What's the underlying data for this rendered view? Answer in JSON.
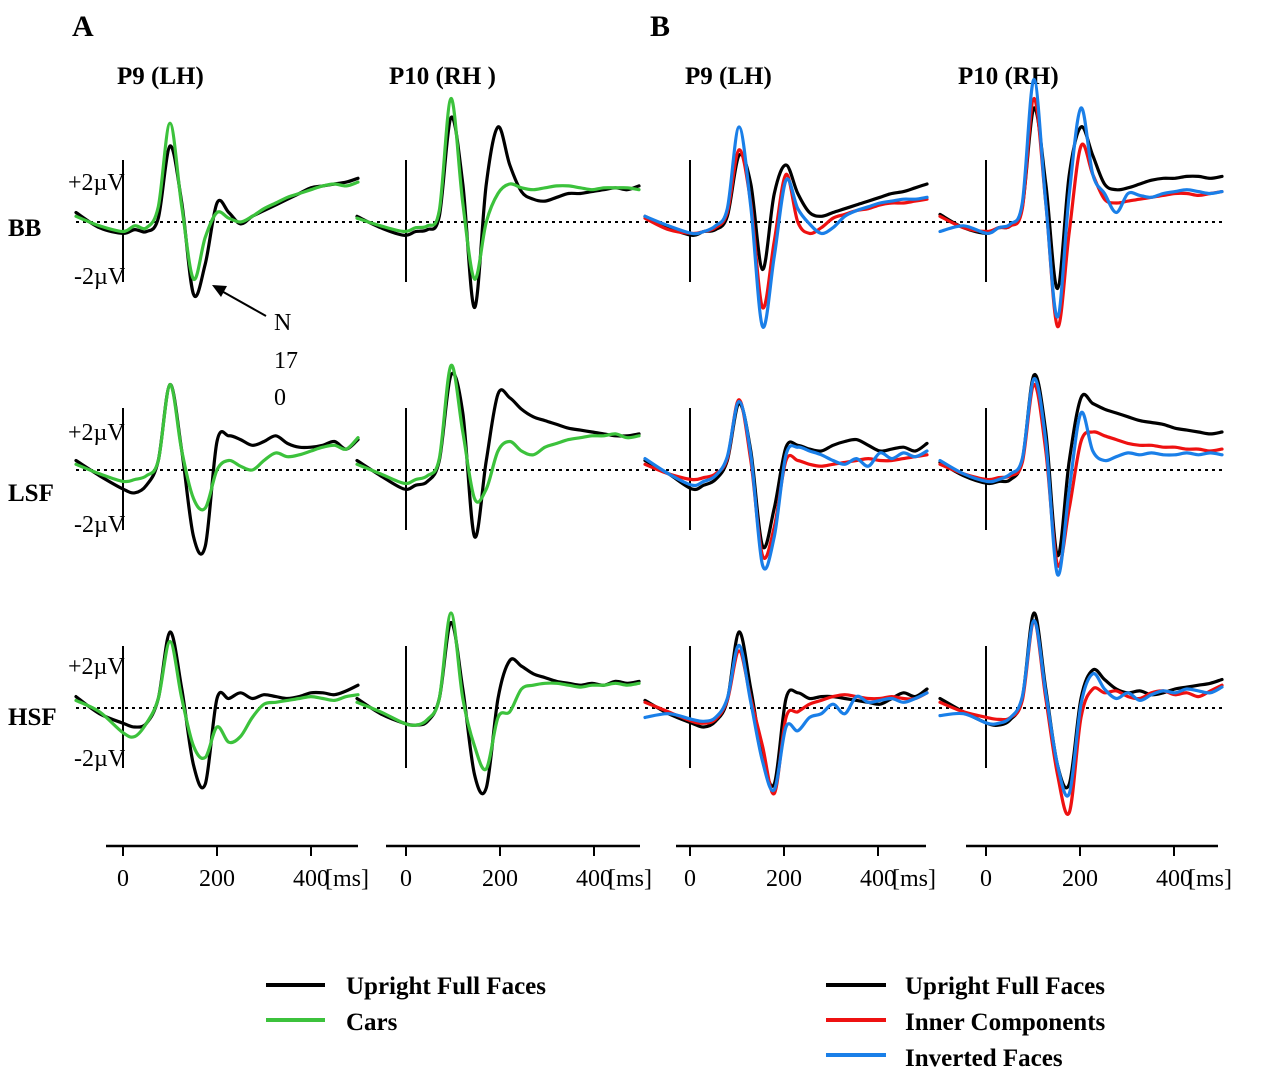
{
  "panels": {
    "A": {
      "label": "A",
      "titles": [
        "P9 (LH)",
        "P10 (RH )"
      ]
    },
    "B": {
      "label": "B",
      "titles": [
        "P9 (LH)",
        "P10 (RH)"
      ]
    }
  },
  "rows": [
    "BB",
    "LSF",
    "HSF"
  ],
  "amplitude_labels": {
    "pos": "+2µV",
    "neg": "-2µV"
  },
  "annotation": {
    "line1": "N",
    "line2": "17",
    "line3": "0"
  },
  "time_axis": {
    "ticks": [
      "0",
      "200",
      "400"
    ],
    "unit": "[ms]"
  },
  "legends": {
    "A": [
      {
        "label": "Upright Full Faces",
        "color": "#000000"
      },
      {
        "label": "Cars",
        "color": "#3cc23c"
      }
    ],
    "B": [
      {
        "label": "Upright Full Faces",
        "color": "#000000"
      },
      {
        "label": "Inner Components",
        "color": "#ee1111"
      },
      {
        "label": "Inverted Faces",
        "color": "#1a7fe8"
      }
    ]
  },
  "chart_data": {
    "type": "line",
    "x_unit": "ms",
    "xlim": [
      -100,
      500
    ],
    "y_unit": "µV",
    "y_ticks": [
      2,
      -2
    ],
    "x": [
      -100,
      -50,
      0,
      25,
      50,
      75,
      100,
      125,
      150,
      175,
      200,
      225,
      250,
      275,
      300,
      325,
      350,
      375,
      400,
      425,
      450,
      475,
      500
    ],
    "subplots": [
      {
        "panel": "A",
        "electrode": "P9 (LH)",
        "row": "BB",
        "series": [
          {
            "name": "Upright Full Faces",
            "values": [
              0.5,
              -0.3,
              -0.6,
              -0.4,
              -0.5,
              0.2,
              4.0,
              1.0,
              -3.8,
              -2.2,
              1.0,
              0.5,
              -0.1,
              0.3,
              0.6,
              0.9,
              1.2,
              1.5,
              1.8,
              1.9,
              2.0,
              2.1,
              2.3
            ]
          },
          {
            "name": "Cars",
            "values": [
              0.3,
              -0.2,
              -0.5,
              -0.2,
              -0.3,
              0.8,
              5.2,
              0.8,
              -3.0,
              -0.8,
              0.5,
              0.2,
              0.0,
              0.3,
              0.7,
              1.0,
              1.3,
              1.5,
              1.7,
              1.9,
              2.0,
              1.9,
              2.1
            ]
          }
        ]
      },
      {
        "panel": "A",
        "electrode": "P10 (RH )",
        "row": "BB",
        "series": [
          {
            "name": "Upright Full Faces",
            "values": [
              0.3,
              -0.3,
              -0.7,
              -0.5,
              -0.4,
              0.3,
              5.5,
              2.0,
              -4.5,
              2.0,
              5.0,
              3.0,
              1.6,
              1.2,
              1.1,
              1.3,
              1.5,
              1.5,
              1.6,
              1.7,
              1.8,
              1.7,
              1.9
            ]
          },
          {
            "name": "Cars",
            "values": [
              0.2,
              -0.2,
              -0.5,
              -0.3,
              -0.2,
              0.6,
              6.5,
              1.0,
              -3.0,
              0.0,
              1.5,
              2.0,
              1.8,
              1.7,
              1.8,
              1.9,
              1.9,
              1.8,
              1.7,
              1.8,
              1.8,
              1.8,
              1.7
            ]
          }
        ]
      },
      {
        "panel": "B",
        "electrode": "P9 (LH)",
        "row": "BB",
        "series": [
          {
            "name": "Upright Full Faces",
            "values": [
              0.3,
              -0.3,
              -0.7,
              -0.5,
              -0.4,
              0.3,
              3.5,
              2.0,
              -2.5,
              1.5,
              3.0,
              1.5,
              0.5,
              0.3,
              0.5,
              0.7,
              0.9,
              1.1,
              1.3,
              1.5,
              1.6,
              1.8,
              2.0
            ]
          },
          {
            "name": "Inner Components",
            "values": [
              0.2,
              -0.4,
              -0.6,
              -0.5,
              -0.3,
              0.5,
              3.8,
              1.0,
              -4.5,
              -1.0,
              2.5,
              0.0,
              -0.6,
              -0.3,
              0.2,
              0.4,
              0.6,
              0.7,
              0.9,
              1.0,
              1.0,
              1.1,
              1.2
            ]
          },
          {
            "name": "Inverted Faces",
            "values": [
              0.3,
              -0.2,
              -0.6,
              -0.5,
              -0.2,
              0.7,
              5.0,
              0.8,
              -5.5,
              -1.8,
              2.2,
              0.7,
              -0.1,
              -0.6,
              -0.3,
              0.3,
              0.6,
              0.8,
              1.0,
              1.1,
              1.2,
              1.2,
              1.3
            ]
          }
        ]
      },
      {
        "panel": "B",
        "electrode": "P10 (RH)",
        "row": "BB",
        "series": [
          {
            "name": "Upright Full Faces",
            "values": [
              0.4,
              -0.3,
              -0.6,
              -0.3,
              -0.2,
              0.8,
              6.0,
              2.0,
              -3.5,
              2.5,
              5.0,
              3.5,
              2.0,
              1.7,
              1.8,
              2.0,
              2.2,
              2.3,
              2.3,
              2.4,
              2.4,
              2.3,
              2.4
            ]
          },
          {
            "name": "Inner Components",
            "values": [
              0.3,
              -0.3,
              -0.5,
              -0.3,
              -0.2,
              0.7,
              6.5,
              1.0,
              -5.5,
              -0.5,
              4.0,
              2.5,
              1.2,
              1.0,
              1.1,
              1.2,
              1.3,
              1.4,
              1.5,
              1.5,
              1.4,
              1.5,
              1.6
            ]
          },
          {
            "name": "Inverted Faces",
            "values": [
              -0.5,
              -0.2,
              -0.6,
              -0.3,
              -0.1,
              1.0,
              7.5,
              1.0,
              -5.0,
              1.5,
              6.0,
              2.5,
              1.5,
              0.5,
              1.5,
              1.4,
              1.3,
              1.5,
              1.6,
              1.7,
              1.6,
              1.5,
              1.6
            ]
          }
        ]
      },
      {
        "panel": "A",
        "electrode": "P9 (LH)",
        "row": "LSF",
        "series": [
          {
            "name": "Upright Full Faces",
            "values": [
              0.5,
              -0.3,
              -1.0,
              -1.2,
              -0.8,
              0.5,
              4.5,
              1.0,
              -3.5,
              -4.0,
              1.5,
              1.8,
              1.6,
              1.3,
              1.5,
              1.8,
              1.4,
              1.2,
              1.2,
              1.3,
              1.5,
              1.1,
              1.6
            ]
          },
          {
            "name": "Cars",
            "values": [
              0.3,
              -0.2,
              -0.6,
              -0.5,
              -0.3,
              0.5,
              4.5,
              1.0,
              -1.5,
              -2.0,
              0.0,
              0.5,
              0.2,
              0.0,
              0.5,
              0.9,
              0.7,
              0.8,
              1.0,
              1.2,
              1.3,
              1.1,
              1.7
            ]
          }
        ]
      },
      {
        "panel": "A",
        "electrode": "P10 (RH )",
        "row": "LSF",
        "series": [
          {
            "name": "Upright Full Faces",
            "values": [
              0.5,
              -0.3,
              -1.0,
              -0.8,
              -0.6,
              0.5,
              5.0,
              3.0,
              -3.5,
              0.5,
              4.0,
              3.8,
              3.2,
              2.8,
              2.6,
              2.4,
              2.2,
              2.1,
              2.0,
              1.9,
              1.8,
              1.8,
              1.9
            ]
          },
          {
            "name": "Cars",
            "values": [
              0.3,
              -0.2,
              -0.7,
              -0.5,
              -0.3,
              0.6,
              5.5,
              2.0,
              -1.5,
              -1.0,
              1.0,
              1.5,
              1.0,
              0.8,
              1.2,
              1.4,
              1.6,
              1.7,
              1.8,
              1.8,
              1.9,
              1.7,
              1.8
            ]
          }
        ]
      },
      {
        "panel": "B",
        "electrode": "P9 (LH)",
        "row": "LSF",
        "series": [
          {
            "name": "Upright Full Faces",
            "values": [
              0.5,
              -0.2,
              -1.0,
              -0.8,
              -0.5,
              0.5,
              3.5,
              1.0,
              -4.0,
              -2.0,
              1.2,
              1.3,
              1.1,
              1.0,
              1.3,
              1.5,
              1.6,
              1.3,
              1.0,
              1.1,
              1.2,
              1.0,
              1.4
            ]
          },
          {
            "name": "Inner Components",
            "values": [
              0.3,
              -0.2,
              -0.5,
              -0.4,
              -0.2,
              0.6,
              3.7,
              0.5,
              -4.5,
              -3.0,
              0.5,
              0.5,
              0.3,
              0.2,
              0.3,
              0.4,
              0.5,
              0.6,
              0.5,
              0.5,
              0.6,
              0.7,
              0.8
            ]
          },
          {
            "name": "Inverted Faces",
            "values": [
              0.6,
              -0.2,
              -0.8,
              -0.6,
              -0.3,
              0.7,
              3.6,
              0.8,
              -5.0,
              -3.5,
              0.8,
              1.2,
              1.0,
              0.8,
              0.5,
              0.3,
              0.6,
              0.2,
              0.9,
              0.6,
              0.9,
              0.7,
              1.0
            ]
          }
        ]
      },
      {
        "panel": "B",
        "electrode": "P10 (RH)",
        "row": "LSF",
        "series": [
          {
            "name": "Upright Full Faces",
            "values": [
              0.4,
              -0.3,
              -0.7,
              -0.6,
              -0.5,
              0.5,
              5.0,
              2.0,
              -4.5,
              0.5,
              3.8,
              3.5,
              3.2,
              3.0,
              2.8,
              2.6,
              2.5,
              2.4,
              2.2,
              2.1,
              2.0,
              1.9,
              2.0
            ]
          },
          {
            "name": "Inner Components",
            "values": [
              0.3,
              -0.2,
              -0.5,
              -0.4,
              -0.3,
              0.4,
              4.5,
              1.0,
              -5.0,
              -2.0,
              1.5,
              2.0,
              1.8,
              1.6,
              1.4,
              1.3,
              1.3,
              1.2,
              1.2,
              1.1,
              1.1,
              1.0,
              1.1
            ]
          },
          {
            "name": "Inverted Faces",
            "values": [
              0.5,
              -0.2,
              -0.6,
              -0.5,
              -0.2,
              0.6,
              4.8,
              1.5,
              -5.5,
              -1.0,
              3.0,
              1.0,
              0.5,
              0.7,
              0.9,
              0.8,
              0.9,
              0.8,
              0.8,
              0.9,
              0.8,
              0.9,
              0.8
            ]
          }
        ]
      },
      {
        "panel": "A",
        "electrode": "P9 (LH)",
        "row": "HSF",
        "series": [
          {
            "name": "Upright Full Faces",
            "values": [
              0.6,
              -0.3,
              -0.8,
              -1.0,
              -0.8,
              0.5,
              4.0,
              1.0,
              -3.0,
              -4.0,
              0.5,
              0.5,
              0.8,
              0.5,
              0.7,
              0.6,
              0.5,
              0.6,
              0.8,
              0.8,
              0.7,
              0.9,
              1.2
            ]
          },
          {
            "name": "Cars",
            "values": [
              0.4,
              -0.2,
              -1.3,
              -1.5,
              -0.8,
              0.5,
              3.5,
              0.5,
              -2.0,
              -2.6,
              -1.0,
              -1.8,
              -1.5,
              -0.5,
              0.2,
              0.3,
              0.4,
              0.5,
              0.6,
              0.5,
              0.4,
              0.6,
              0.7
            ]
          }
        ]
      },
      {
        "panel": "A",
        "electrode": "P10 (RH )",
        "row": "HSF",
        "series": [
          {
            "name": "Upright Full Faces",
            "values": [
              0.5,
              -0.3,
              -0.8,
              -0.9,
              -0.7,
              0.5,
              4.5,
              1.0,
              -3.5,
              -4.2,
              0.5,
              2.5,
              2.2,
              1.8,
              1.6,
              1.4,
              1.3,
              1.2,
              1.3,
              1.2,
              1.4,
              1.3,
              1.4
            ]
          },
          {
            "name": "Cars",
            "values": [
              0.3,
              -0.2,
              -0.8,
              -0.9,
              -0.6,
              0.5,
              5.0,
              0.5,
              -2.0,
              -3.2,
              -0.5,
              -0.2,
              1.0,
              1.2,
              1.3,
              1.3,
              1.2,
              1.1,
              1.2,
              1.2,
              1.3,
              1.2,
              1.3
            ]
          }
        ]
      },
      {
        "panel": "B",
        "electrode": "P9 (LH)",
        "row": "HSF",
        "series": [
          {
            "name": "Upright Full Faces",
            "values": [
              0.4,
              -0.3,
              -0.8,
              -1.0,
              -0.7,
              0.4,
              4.0,
              1.0,
              -2.5,
              -4.0,
              0.5,
              0.8,
              0.5,
              0.6,
              0.6,
              0.5,
              0.4,
              0.3,
              0.2,
              0.5,
              0.8,
              0.6,
              1.0
            ]
          },
          {
            "name": "Inner Components",
            "values": [
              0.3,
              -0.2,
              -0.7,
              -0.8,
              -0.6,
              0.4,
              3.0,
              0.5,
              -2.0,
              -4.5,
              -0.5,
              -0.2,
              0.2,
              0.4,
              0.6,
              0.7,
              0.6,
              0.5,
              0.5,
              0.6,
              0.5,
              0.5,
              0.8
            ]
          },
          {
            "name": "Inverted Faces",
            "values": [
              -0.5,
              -0.3,
              -0.6,
              -0.7,
              -0.5,
              0.5,
              3.3,
              0.3,
              -2.8,
              -4.3,
              -1.0,
              -1.2,
              -0.5,
              -0.3,
              0.2,
              -0.3,
              0.6,
              0.3,
              0.4,
              0.5,
              0.3,
              0.5,
              0.8
            ]
          }
        ]
      },
      {
        "panel": "B",
        "electrode": "P10 (RH)",
        "row": "HSF",
        "series": [
          {
            "name": "Upright Full Faces",
            "values": [
              0.5,
              -0.2,
              -0.8,
              -0.9,
              -0.6,
              0.5,
              5.0,
              1.0,
              -3.0,
              -4.0,
              0.5,
              2.0,
              1.5,
              1.0,
              0.8,
              0.9,
              0.7,
              0.8,
              1.0,
              1.1,
              1.2,
              1.3,
              1.5
            ]
          },
          {
            "name": "Inner Components",
            "values": [
              0.3,
              -0.2,
              -0.5,
              -0.6,
              -0.5,
              0.4,
              4.5,
              0.5,
              -3.5,
              -5.5,
              -0.5,
              1.0,
              0.8,
              0.9,
              0.6,
              0.5,
              0.8,
              0.9,
              0.7,
              0.8,
              0.6,
              0.9,
              1.2
            ]
          },
          {
            "name": "Inverted Faces",
            "values": [
              -0.4,
              -0.3,
              -0.8,
              -0.8,
              -0.5,
              0.6,
              4.6,
              0.8,
              -3.0,
              -4.5,
              0.2,
              1.8,
              1.0,
              0.5,
              0.8,
              0.4,
              0.7,
              0.9,
              0.8,
              1.0,
              0.9,
              0.8,
              1.1
            ]
          }
        ]
      }
    ]
  }
}
